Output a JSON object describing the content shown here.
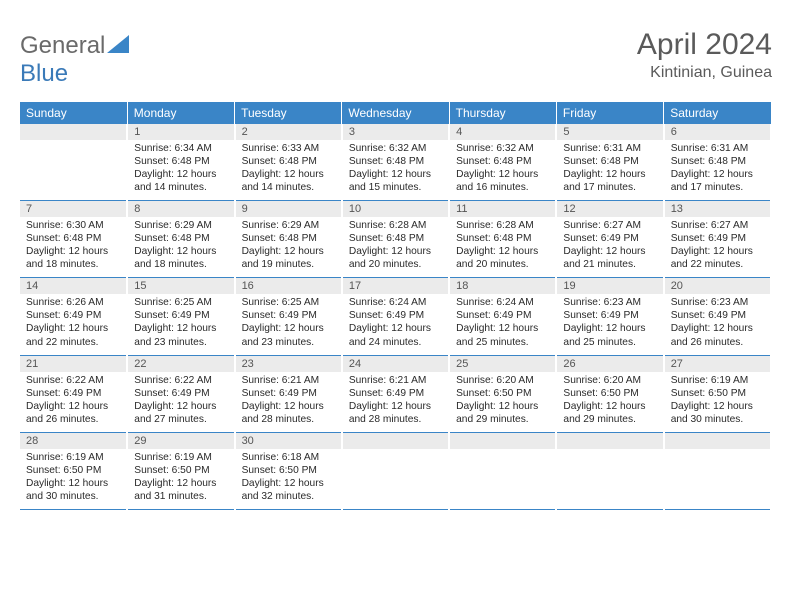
{
  "brand": {
    "name_part1": "General",
    "name_part2": "Blue",
    "logo_color": "#3a85c7",
    "text_color": "#6a6a6a"
  },
  "header": {
    "title": "April 2024",
    "location": "Kintinian, Guinea"
  },
  "colors": {
    "header_bg": "#3a85c7",
    "header_text": "#ffffff",
    "daynum_bg": "#ebebeb",
    "row_border": "#3a85c7"
  },
  "weekdays": [
    "Sunday",
    "Monday",
    "Tuesday",
    "Wednesday",
    "Thursday",
    "Friday",
    "Saturday"
  ],
  "weeks": [
    [
      null,
      {
        "n": "1",
        "sr": "Sunrise: 6:34 AM",
        "ss": "Sunset: 6:48 PM",
        "dl": "Daylight: 12 hours and 14 minutes."
      },
      {
        "n": "2",
        "sr": "Sunrise: 6:33 AM",
        "ss": "Sunset: 6:48 PM",
        "dl": "Daylight: 12 hours and 14 minutes."
      },
      {
        "n": "3",
        "sr": "Sunrise: 6:32 AM",
        "ss": "Sunset: 6:48 PM",
        "dl": "Daylight: 12 hours and 15 minutes."
      },
      {
        "n": "4",
        "sr": "Sunrise: 6:32 AM",
        "ss": "Sunset: 6:48 PM",
        "dl": "Daylight: 12 hours and 16 minutes."
      },
      {
        "n": "5",
        "sr": "Sunrise: 6:31 AM",
        "ss": "Sunset: 6:48 PM",
        "dl": "Daylight: 12 hours and 17 minutes."
      },
      {
        "n": "6",
        "sr": "Sunrise: 6:31 AM",
        "ss": "Sunset: 6:48 PM",
        "dl": "Daylight: 12 hours and 17 minutes."
      }
    ],
    [
      {
        "n": "7",
        "sr": "Sunrise: 6:30 AM",
        "ss": "Sunset: 6:48 PM",
        "dl": "Daylight: 12 hours and 18 minutes."
      },
      {
        "n": "8",
        "sr": "Sunrise: 6:29 AM",
        "ss": "Sunset: 6:48 PM",
        "dl": "Daylight: 12 hours and 18 minutes."
      },
      {
        "n": "9",
        "sr": "Sunrise: 6:29 AM",
        "ss": "Sunset: 6:48 PM",
        "dl": "Daylight: 12 hours and 19 minutes."
      },
      {
        "n": "10",
        "sr": "Sunrise: 6:28 AM",
        "ss": "Sunset: 6:48 PM",
        "dl": "Daylight: 12 hours and 20 minutes."
      },
      {
        "n": "11",
        "sr": "Sunrise: 6:28 AM",
        "ss": "Sunset: 6:48 PM",
        "dl": "Daylight: 12 hours and 20 minutes."
      },
      {
        "n": "12",
        "sr": "Sunrise: 6:27 AM",
        "ss": "Sunset: 6:49 PM",
        "dl": "Daylight: 12 hours and 21 minutes."
      },
      {
        "n": "13",
        "sr": "Sunrise: 6:27 AM",
        "ss": "Sunset: 6:49 PM",
        "dl": "Daylight: 12 hours and 22 minutes."
      }
    ],
    [
      {
        "n": "14",
        "sr": "Sunrise: 6:26 AM",
        "ss": "Sunset: 6:49 PM",
        "dl": "Daylight: 12 hours and 22 minutes."
      },
      {
        "n": "15",
        "sr": "Sunrise: 6:25 AM",
        "ss": "Sunset: 6:49 PM",
        "dl": "Daylight: 12 hours and 23 minutes."
      },
      {
        "n": "16",
        "sr": "Sunrise: 6:25 AM",
        "ss": "Sunset: 6:49 PM",
        "dl": "Daylight: 12 hours and 23 minutes."
      },
      {
        "n": "17",
        "sr": "Sunrise: 6:24 AM",
        "ss": "Sunset: 6:49 PM",
        "dl": "Daylight: 12 hours and 24 minutes."
      },
      {
        "n": "18",
        "sr": "Sunrise: 6:24 AM",
        "ss": "Sunset: 6:49 PM",
        "dl": "Daylight: 12 hours and 25 minutes."
      },
      {
        "n": "19",
        "sr": "Sunrise: 6:23 AM",
        "ss": "Sunset: 6:49 PM",
        "dl": "Daylight: 12 hours and 25 minutes."
      },
      {
        "n": "20",
        "sr": "Sunrise: 6:23 AM",
        "ss": "Sunset: 6:49 PM",
        "dl": "Daylight: 12 hours and 26 minutes."
      }
    ],
    [
      {
        "n": "21",
        "sr": "Sunrise: 6:22 AM",
        "ss": "Sunset: 6:49 PM",
        "dl": "Daylight: 12 hours and 26 minutes."
      },
      {
        "n": "22",
        "sr": "Sunrise: 6:22 AM",
        "ss": "Sunset: 6:49 PM",
        "dl": "Daylight: 12 hours and 27 minutes."
      },
      {
        "n": "23",
        "sr": "Sunrise: 6:21 AM",
        "ss": "Sunset: 6:49 PM",
        "dl": "Daylight: 12 hours and 28 minutes."
      },
      {
        "n": "24",
        "sr": "Sunrise: 6:21 AM",
        "ss": "Sunset: 6:49 PM",
        "dl": "Daylight: 12 hours and 28 minutes."
      },
      {
        "n": "25",
        "sr": "Sunrise: 6:20 AM",
        "ss": "Sunset: 6:50 PM",
        "dl": "Daylight: 12 hours and 29 minutes."
      },
      {
        "n": "26",
        "sr": "Sunrise: 6:20 AM",
        "ss": "Sunset: 6:50 PM",
        "dl": "Daylight: 12 hours and 29 minutes."
      },
      {
        "n": "27",
        "sr": "Sunrise: 6:19 AM",
        "ss": "Sunset: 6:50 PM",
        "dl": "Daylight: 12 hours and 30 minutes."
      }
    ],
    [
      {
        "n": "28",
        "sr": "Sunrise: 6:19 AM",
        "ss": "Sunset: 6:50 PM",
        "dl": "Daylight: 12 hours and 30 minutes."
      },
      {
        "n": "29",
        "sr": "Sunrise: 6:19 AM",
        "ss": "Sunset: 6:50 PM",
        "dl": "Daylight: 12 hours and 31 minutes."
      },
      {
        "n": "30",
        "sr": "Sunrise: 6:18 AM",
        "ss": "Sunset: 6:50 PM",
        "dl": "Daylight: 12 hours and 32 minutes."
      },
      null,
      null,
      null,
      null
    ]
  ]
}
